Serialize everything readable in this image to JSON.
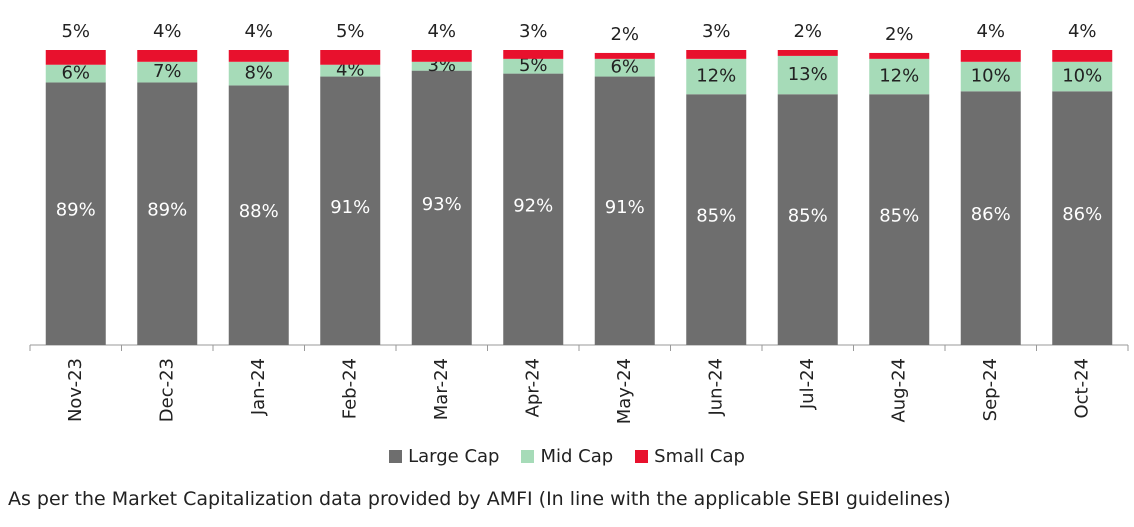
{
  "chart_data": {
    "type": "bar",
    "stacked": true,
    "categories": [
      "Nov-23",
      "Dec-23",
      "Jan-24",
      "Feb-24",
      "Mar-24",
      "Apr-24",
      "May-24",
      "Jun-24",
      "Jul-24",
      "Aug-24",
      "Sep-24",
      "Oct-24"
    ],
    "series": [
      {
        "name": "Large Cap",
        "color": "#6e6e6e",
        "values": [
          89,
          89,
          88,
          91,
          93,
          92,
          91,
          85,
          85,
          85,
          86,
          86
        ]
      },
      {
        "name": "Mid Cap",
        "color": "#a6dbb8",
        "values": [
          6,
          7,
          8,
          4,
          3,
          5,
          6,
          12,
          13,
          12,
          10,
          10
        ]
      },
      {
        "name": "Small Cap",
        "color": "#e8112d",
        "values": [
          5,
          4,
          4,
          5,
          4,
          3,
          2,
          3,
          2,
          2,
          4,
          4
        ]
      }
    ],
    "value_format": "{v}%",
    "ylim": [
      0,
      100
    ],
    "legend_position": "bottom"
  },
  "legend": {
    "items": [
      {
        "label": "Large Cap",
        "color": "#6e6e6e"
      },
      {
        "label": "Mid Cap",
        "color": "#a6dbb8"
      },
      {
        "label": "Small Cap",
        "color": "#e8112d"
      }
    ]
  },
  "footnote": "As per the Market Capitalization data provided by AMFI (In line with the applicable SEBI guidelines)"
}
